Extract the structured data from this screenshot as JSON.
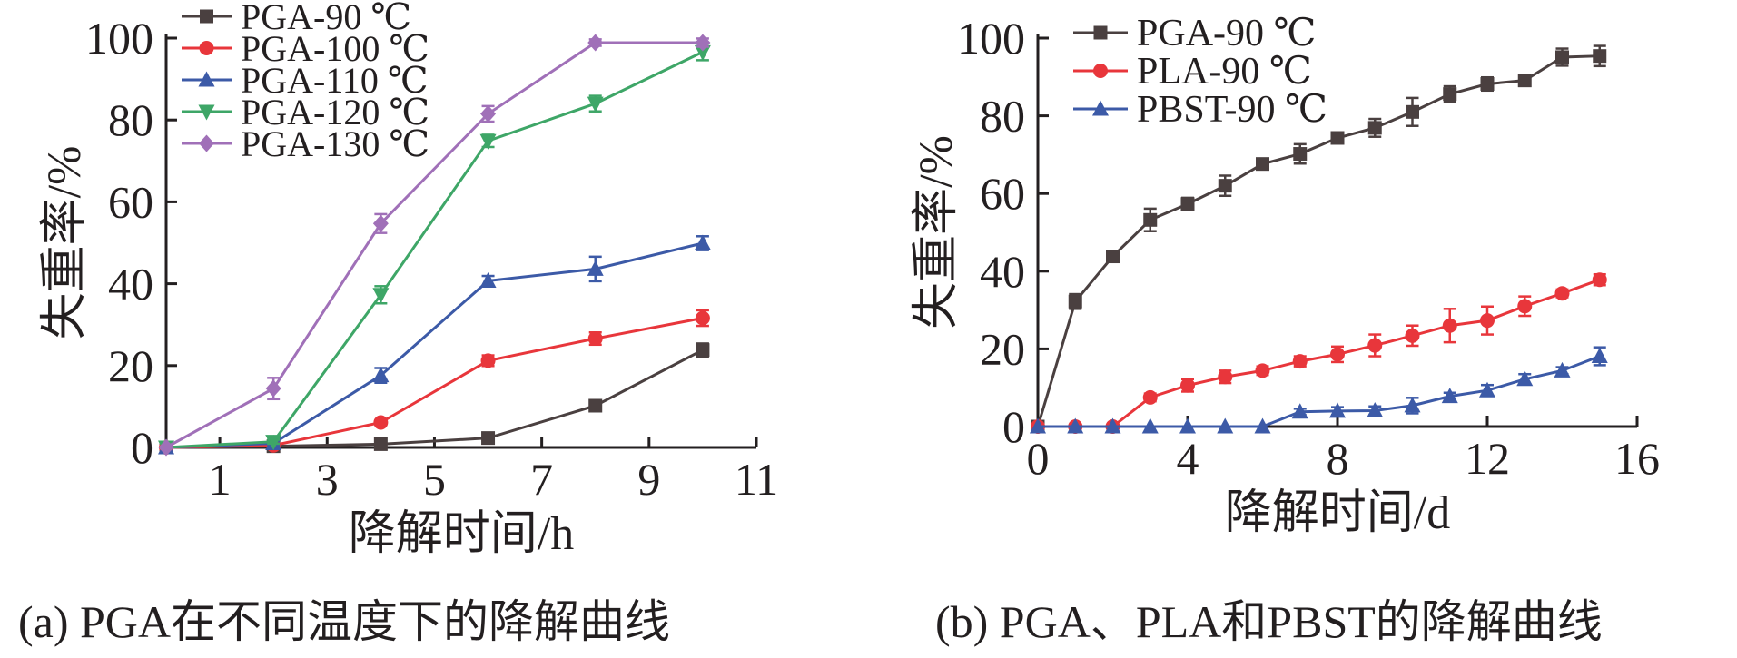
{
  "chart_data": [
    {
      "type": "line",
      "xlabel": "降解时间/h",
      "ylabel": "失重率/%",
      "caption": "(a) PGA在不同温度下的降解曲线",
      "xlim": [
        0,
        11
      ],
      "ylim": [
        0,
        100
      ],
      "xticks": [
        1,
        3,
        5,
        7,
        9,
        11
      ],
      "yticks": [
        0,
        20,
        40,
        60,
        80,
        100
      ],
      "legend": "top-left",
      "series": [
        {
          "name": "PGA-90 ℃",
          "color": "#4a4040",
          "marker": "square",
          "x": [
            0,
            2,
            4,
            6,
            8,
            10
          ],
          "y": [
            0,
            0.3,
            0.8,
            2.3,
            10.2,
            23.8
          ],
          "err": [
            0.3,
            0.3,
            0.5,
            0.5,
            1.0,
            1.6
          ]
        },
        {
          "name": "PGA-100 ℃",
          "color": "#e8363b",
          "marker": "circle",
          "x": [
            0,
            2,
            4,
            6,
            8,
            10
          ],
          "y": [
            0,
            0.5,
            6.1,
            21.2,
            26.6,
            31.6
          ],
          "err": [
            0.3,
            0.4,
            0.6,
            1.3,
            1.5,
            1.9
          ]
        },
        {
          "name": "PGA-110 ℃",
          "color": "#3c5aa7",
          "marker": "triangle-up",
          "x": [
            0,
            2,
            4,
            6,
            8,
            10
          ],
          "y": [
            0,
            1.0,
            17.6,
            40.7,
            43.6,
            49.9
          ],
          "err": [
            0.3,
            0.5,
            1.8,
            1.2,
            3.0,
            1.7
          ]
        },
        {
          "name": "PGA-120 ℃",
          "color": "#3ea667",
          "marker": "triangle-down",
          "x": [
            0,
            2,
            4,
            6,
            8,
            10
          ],
          "y": [
            0,
            1.4,
            37.3,
            74.9,
            84.0,
            96.6
          ],
          "err": [
            0.3,
            0.5,
            2.1,
            1.5,
            1.9,
            2.0
          ]
        },
        {
          "name": "PGA-130 ℃",
          "color": "#a070b8",
          "marker": "diamond",
          "x": [
            0,
            2,
            4,
            6,
            8,
            10
          ],
          "y": [
            0,
            14.4,
            54.7,
            81.5,
            98.9,
            98.9
          ],
          "err": [
            0.3,
            2.6,
            2.3,
            1.9,
            0.8,
            1.0
          ]
        }
      ]
    },
    {
      "type": "line",
      "xlabel": "降解时间/d",
      "ylabel": "失重率/%",
      "caption": "(b) PGA、PLA和PBST的降解曲线",
      "xlim": [
        0,
        16
      ],
      "ylim": [
        0,
        100
      ],
      "xticks": [
        0,
        4,
        8,
        12,
        16
      ],
      "yticks": [
        0,
        20,
        40,
        60,
        80,
        100
      ],
      "legend": "top-left",
      "series": [
        {
          "name": "PGA-90 ℃",
          "color": "#4a4040",
          "marker": "square",
          "x": [
            0,
            1,
            2,
            3,
            4,
            5,
            6,
            7,
            8,
            9,
            10,
            11,
            12,
            13,
            14,
            15
          ],
          "y": [
            0,
            32.2,
            43.8,
            53.2,
            57.3,
            62.0,
            67.6,
            70.2,
            74.3,
            76.9,
            81.0,
            85.6,
            88.2,
            89.1,
            95.1,
            95.4
          ],
          "err": [
            0.3,
            1.9,
            1.3,
            2.9,
            1.6,
            2.6,
            1.0,
            2.5,
            1.3,
            2.3,
            3.6,
            2.0,
            1.7,
            1.4,
            2.2,
            2.6
          ]
        },
        {
          "name": "PLA-90 ℃",
          "color": "#e8363b",
          "marker": "circle",
          "x": [
            0,
            1,
            2,
            3,
            4,
            5,
            6,
            7,
            8,
            9,
            10,
            11,
            12,
            13,
            14,
            15
          ],
          "y": [
            0,
            0,
            0,
            7.5,
            10.6,
            12.8,
            14.4,
            16.8,
            18.6,
            20.9,
            23.4,
            26.0,
            27.3,
            31.0,
            34.3,
            37.8
          ],
          "err": [
            0.3,
            0.3,
            0.3,
            1.0,
            1.6,
            1.6,
            1.1,
            1.3,
            2.0,
            2.8,
            2.6,
            4.3,
            3.6,
            2.5,
            1.0,
            1.4
          ]
        },
        {
          "name": "PBST-90 ℃",
          "color": "#3c5aa7",
          "marker": "triangle-up",
          "x": [
            0,
            1,
            2,
            3,
            4,
            5,
            6,
            7,
            8,
            9,
            10,
            11,
            12,
            13,
            14,
            15
          ],
          "y": [
            0,
            0,
            0,
            0,
            0,
            0,
            0,
            3.8,
            4.0,
            4.1,
            5.4,
            7.8,
            9.3,
            12.2,
            14.4,
            18.1
          ],
          "err": [
            0.3,
            0.3,
            0.3,
            0.3,
            0.3,
            0.3,
            0.3,
            0.8,
            1.0,
            1.1,
            2.0,
            0.9,
            1.4,
            1.3,
            0.9,
            2.3
          ]
        }
      ]
    }
  ]
}
